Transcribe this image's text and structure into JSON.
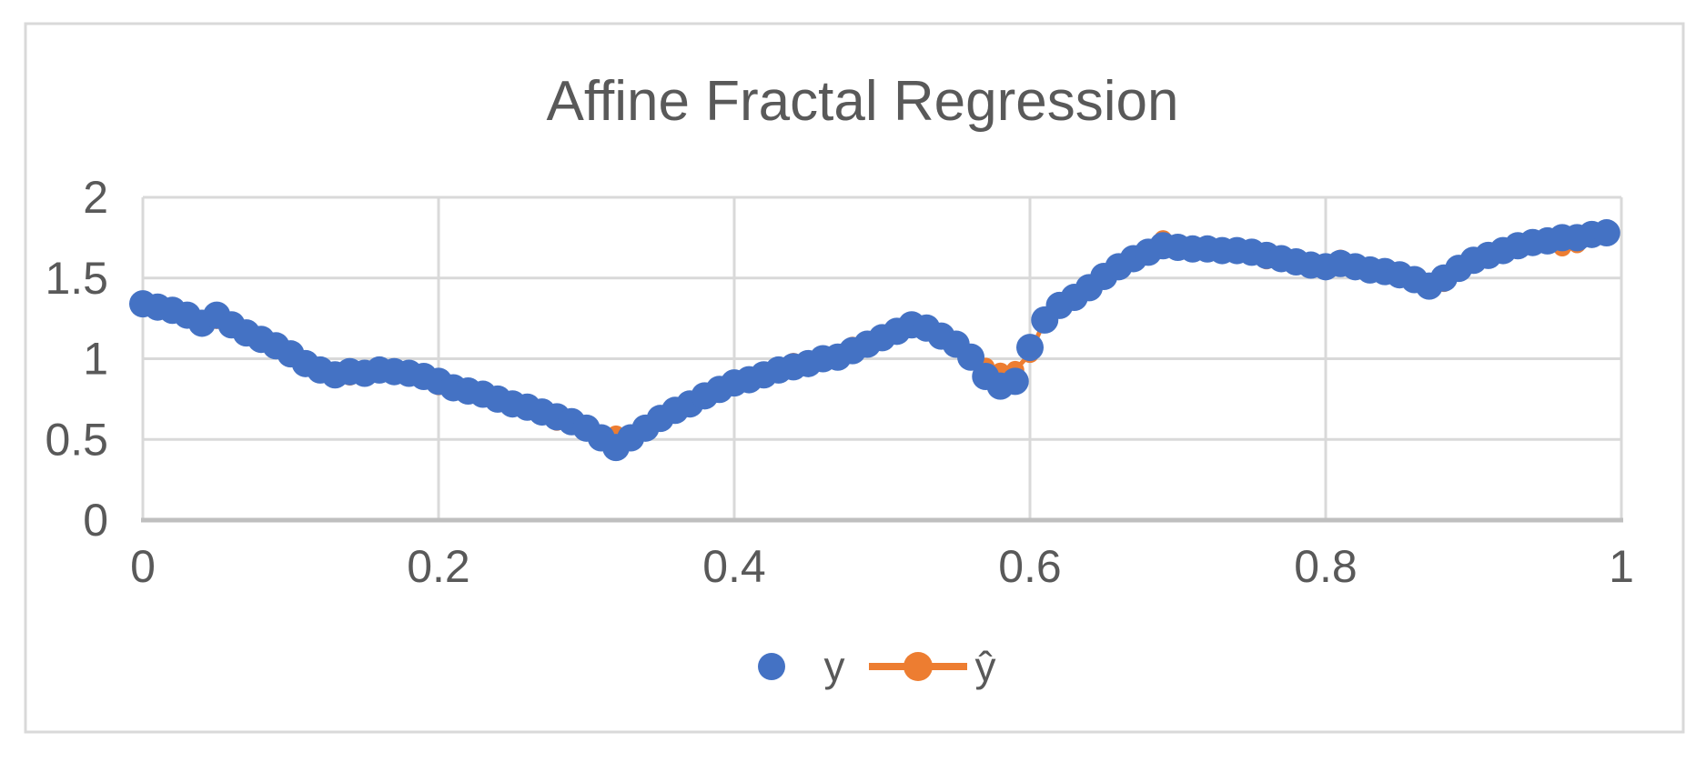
{
  "chart": {
    "title": "Affine Fractal Regression",
    "title_color": "#595959",
    "tick_label_color": "#595959",
    "gridline_color": "#d9d9d9",
    "axis_line_color": "#bfbfbf",
    "border_color": "#d9d9d9",
    "background": "#ffffff"
  },
  "chart_data": {
    "type": "scatter",
    "title": "Affine Fractal Regression",
    "xlabel": "",
    "ylabel": "",
    "xlim": [
      0,
      1
    ],
    "ylim": [
      0,
      2
    ],
    "x_ticks": [
      "0",
      "0.2",
      "0.4",
      "0.6",
      "0.8",
      "1"
    ],
    "x_tick_values": [
      0,
      0.2,
      0.4,
      0.6,
      0.8,
      1
    ],
    "y_ticks": [
      "0",
      "0.5",
      "1",
      "1.5",
      "2"
    ],
    "y_tick_values": [
      0,
      0.5,
      1,
      1.5,
      2
    ],
    "grid": true,
    "legend_position": "bottom-center",
    "x": [
      0,
      0.01,
      0.02,
      0.03,
      0.04,
      0.05,
      0.06,
      0.07,
      0.08,
      0.09,
      0.1,
      0.11,
      0.12,
      0.13,
      0.14,
      0.15,
      0.16,
      0.17,
      0.18,
      0.19,
      0.2,
      0.21,
      0.22,
      0.23,
      0.24,
      0.25,
      0.26,
      0.27,
      0.28,
      0.29,
      0.3,
      0.31,
      0.32,
      0.33,
      0.34,
      0.35,
      0.36,
      0.37,
      0.38,
      0.39,
      0.4,
      0.41,
      0.42,
      0.43,
      0.44,
      0.45,
      0.46,
      0.47,
      0.48,
      0.49,
      0.5,
      0.51,
      0.52,
      0.53,
      0.54,
      0.55,
      0.56,
      0.57,
      0.58,
      0.59,
      0.6,
      0.61,
      0.62,
      0.63,
      0.64,
      0.65,
      0.66,
      0.67,
      0.68,
      0.69,
      0.7,
      0.71,
      0.72,
      0.73,
      0.74,
      0.75,
      0.76,
      0.77,
      0.78,
      0.79,
      0.8,
      0.81,
      0.82,
      0.83,
      0.84,
      0.85,
      0.86,
      0.87,
      0.88,
      0.89,
      0.9,
      0.91,
      0.92,
      0.93,
      0.94,
      0.95,
      0.96,
      0.97,
      0.98,
      0.99
    ],
    "series": [
      {
        "name": "y",
        "style": "scatter",
        "color": "#4472c4",
        "marker": "circle",
        "values": [
          1.34,
          1.32,
          1.3,
          1.27,
          1.22,
          1.27,
          1.21,
          1.16,
          1.12,
          1.08,
          1.03,
          0.97,
          0.93,
          0.9,
          0.92,
          0.91,
          0.93,
          0.92,
          0.91,
          0.89,
          0.86,
          0.82,
          0.8,
          0.78,
          0.75,
          0.72,
          0.7,
          0.67,
          0.64,
          0.61,
          0.57,
          0.51,
          0.45,
          0.51,
          0.57,
          0.63,
          0.68,
          0.72,
          0.77,
          0.81,
          0.85,
          0.87,
          0.9,
          0.93,
          0.95,
          0.97,
          1.0,
          1.01,
          1.05,
          1.09,
          1.13,
          1.17,
          1.21,
          1.19,
          1.14,
          1.09,
          1.01,
          0.89,
          0.83,
          0.86,
          1.07,
          1.24,
          1.33,
          1.38,
          1.44,
          1.51,
          1.57,
          1.62,
          1.66,
          1.7,
          1.69,
          1.68,
          1.68,
          1.67,
          1.67,
          1.66,
          1.64,
          1.62,
          1.6,
          1.58,
          1.57,
          1.59,
          1.57,
          1.55,
          1.54,
          1.52,
          1.49,
          1.45,
          1.5,
          1.56,
          1.61,
          1.64,
          1.67,
          1.7,
          1.72,
          1.73,
          1.75,
          1.75,
          1.77,
          1.78
        ]
      },
      {
        "name": "ŷ",
        "style": "line-marker",
        "color": "#ed7d31",
        "marker": "circle",
        "values": [
          1.34,
          1.32,
          1.3,
          1.27,
          1.2,
          1.24,
          1.21,
          1.16,
          1.12,
          1.08,
          1.03,
          0.97,
          0.93,
          0.9,
          0.89,
          0.91,
          0.93,
          0.92,
          0.91,
          0.89,
          0.83,
          0.82,
          0.8,
          0.78,
          0.75,
          0.72,
          0.7,
          0.67,
          0.61,
          0.61,
          0.57,
          0.51,
          0.53,
          0.51,
          0.57,
          0.63,
          0.68,
          0.72,
          0.77,
          0.81,
          0.85,
          0.87,
          0.9,
          0.93,
          0.98,
          0.97,
          1.0,
          1.01,
          1.08,
          1.09,
          1.13,
          1.17,
          1.21,
          1.19,
          1.14,
          1.09,
          1.01,
          0.95,
          0.92,
          0.93,
          1.03,
          1.24,
          1.33,
          1.38,
          1.44,
          1.51,
          1.57,
          1.62,
          1.66,
          1.74,
          1.69,
          1.68,
          1.68,
          1.67,
          1.67,
          1.66,
          1.61,
          1.62,
          1.6,
          1.58,
          1.57,
          1.62,
          1.57,
          1.55,
          1.54,
          1.52,
          1.49,
          1.43,
          1.47,
          1.56,
          1.61,
          1.64,
          1.67,
          1.7,
          1.72,
          1.73,
          1.69,
          1.71,
          1.77,
          1.78
        ]
      }
    ]
  }
}
